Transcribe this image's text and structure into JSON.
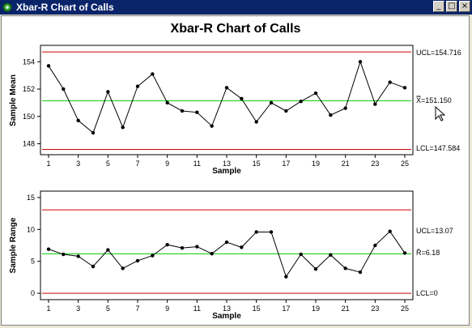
{
  "window": {
    "title": "Xbar-R Chart of Calls",
    "icon": "minitab-graph-icon",
    "buttons": {
      "minimize": "_",
      "maximize": "□",
      "close": "×"
    }
  },
  "colors": {
    "data": "#000000",
    "center_line": "#00cc00",
    "limits": "#cc0000"
  },
  "chart_data": [
    {
      "type": "line",
      "name": "xbar",
      "title": "Xbar-R Chart of Calls",
      "xlabel": "Sample",
      "ylabel": "Sample Mean",
      "x": [
        1,
        2,
        3,
        4,
        5,
        6,
        7,
        8,
        9,
        10,
        11,
        12,
        13,
        14,
        15,
        16,
        17,
        18,
        19,
        20,
        21,
        22,
        23,
        24,
        25
      ],
      "values": [
        153.7,
        152.0,
        149.7,
        148.8,
        151.8,
        149.2,
        152.2,
        153.1,
        151.0,
        150.4,
        150.3,
        149.3,
        152.1,
        151.3,
        149.6,
        151.0,
        150.4,
        151.1,
        151.7,
        150.1,
        150.6,
        154.0,
        150.9,
        152.5,
        152.1
      ],
      "ylim": [
        147.2,
        155.2
      ],
      "yticks": [
        148,
        150,
        152,
        154
      ],
      "xticks": [
        1,
        3,
        5,
        7,
        9,
        11,
        13,
        15,
        17,
        19,
        21,
        23,
        25
      ],
      "ucl": 154.716,
      "center": 151.15,
      "lcl": 147.584,
      "ucl_label": "UCL=154.716",
      "center_label_symbol": "X̿",
      "center_label_value": "=151.150",
      "lcl_label": "LCL=147.584"
    },
    {
      "type": "line",
      "name": "range",
      "xlabel": "Sample",
      "ylabel": "Sample Range",
      "x": [
        1,
        2,
        3,
        4,
        5,
        6,
        7,
        8,
        9,
        10,
        11,
        12,
        13,
        14,
        15,
        16,
        17,
        18,
        19,
        20,
        21,
        22,
        23,
        24,
        25
      ],
      "values": [
        6.9,
        6.1,
        5.8,
        4.2,
        6.8,
        3.9,
        5.1,
        5.9,
        7.6,
        7.1,
        7.3,
        6.2,
        8.0,
        7.2,
        9.6,
        9.6,
        2.6,
        6.1,
        3.8,
        6.0,
        3.9,
        3.3,
        7.5,
        9.7,
        6.3
      ],
      "ylim": [
        -1,
        16
      ],
      "yticks": [
        0,
        5,
        10,
        15
      ],
      "xticks": [
        1,
        3,
        5,
        7,
        9,
        11,
        13,
        15,
        17,
        19,
        21,
        23,
        25
      ],
      "ucl": 13.07,
      "center": 6.18,
      "lcl": 0,
      "ucl_label": "UCL=13.07",
      "center_label_symbol": "R̄",
      "center_label_value": "=6.18",
      "lcl_label": "LCL=0"
    }
  ]
}
